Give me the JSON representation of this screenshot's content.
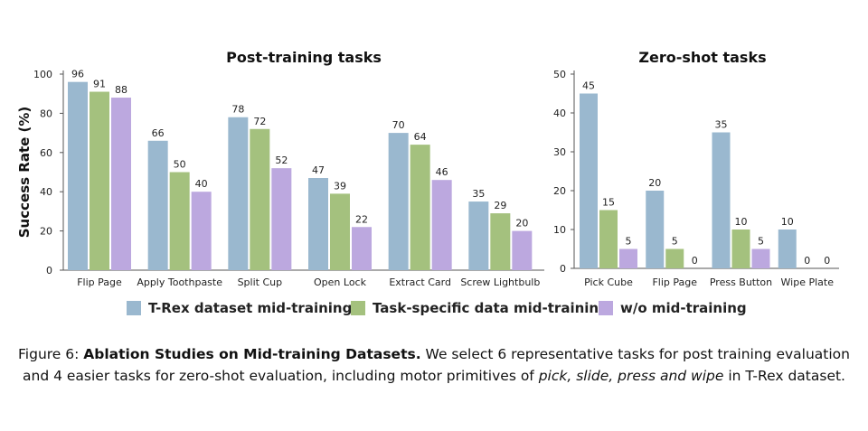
{
  "chart_data": [
    {
      "type": "bar",
      "title": "Post-training tasks",
      "ylabel": "Success Rate (%)",
      "ylim": [
        0,
        100
      ],
      "yticks": [
        0,
        20,
        40,
        60,
        80,
        100
      ],
      "categories": [
        "Flip Page",
        "Apply Toothpaste",
        "Split Cup",
        "Open Lock",
        "Extract Card",
        "Screw Lightbulb"
      ],
      "series": [
        {
          "name": "T-Rex dataset mid-training",
          "values": [
            96,
            66,
            78,
            47,
            70,
            35
          ]
        },
        {
          "name": "Task-specific data mid-training",
          "values": [
            91,
            50,
            72,
            39,
            64,
            29
          ]
        },
        {
          "name": "w/o mid-training",
          "values": [
            88,
            40,
            52,
            22,
            46,
            20
          ]
        }
      ]
    },
    {
      "type": "bar",
      "title": "Zero-shot tasks",
      "ylim": [
        0,
        50
      ],
      "yticks": [
        0,
        10,
        20,
        30,
        40,
        50
      ],
      "categories": [
        "Pick Cube",
        "Flip Page",
        "Press Button",
        "Wipe Plate"
      ],
      "series": [
        {
          "name": "T-Rex dataset mid-training",
          "values": [
            45,
            20,
            35,
            10
          ]
        },
        {
          "name": "Task-specific data mid-training",
          "values": [
            15,
            5,
            10,
            0
          ]
        },
        {
          "name": "w/o mid-training",
          "values": [
            5,
            0,
            5,
            0
          ]
        }
      ]
    }
  ],
  "colors": {
    "series": [
      "#9ab8cf",
      "#a4c17e",
      "#bca8df"
    ],
    "axis": "#555555"
  },
  "legend": {
    "items": [
      "T-Rex dataset mid-training",
      "Task-specific data mid-training",
      "w/o mid-training"
    ]
  },
  "caption": {
    "label": "Figure 6: ",
    "bold": "Ablation Studies on Mid-training Datasets.",
    "text1": " We select 6 representative tasks for post training evaluation and 4 easier tasks for zero-shot evaluation, including motor primitives of ",
    "italic": "pick, slide, press and wipe",
    "text2": " in T-Rex dataset."
  }
}
